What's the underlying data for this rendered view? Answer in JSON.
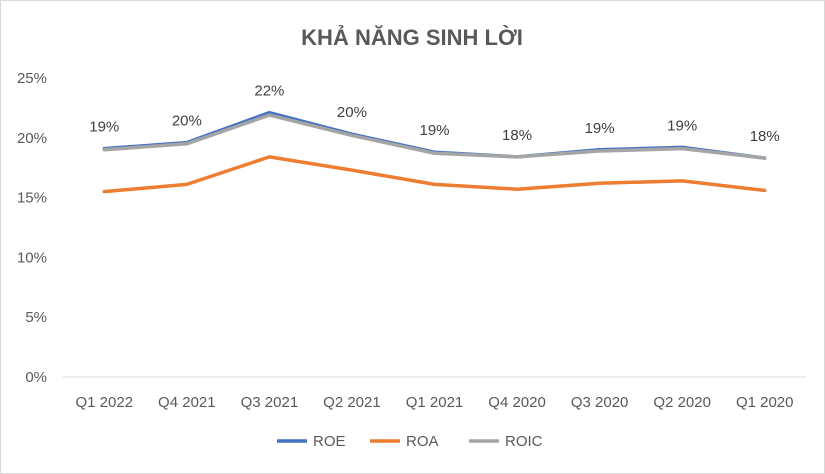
{
  "chart_data": {
    "type": "line",
    "title": "KHẢ NĂNG SINH LỜI",
    "categories": [
      "Q1 2022",
      "Q4 2021",
      "Q3 2021",
      "Q2 2021",
      "Q1 2021",
      "Q4 2020",
      "Q3 2020",
      "Q2 2020",
      "Q1 2020"
    ],
    "series": [
      {
        "name": "ROE",
        "color": "#4472C4",
        "values": [
          0.191,
          0.196,
          0.221,
          0.203,
          0.188,
          0.184,
          0.19,
          0.192,
          0.183
        ]
      },
      {
        "name": "ROA",
        "color": "#ED7D31",
        "values": [
          0.155,
          0.161,
          0.184,
          0.173,
          0.161,
          0.157,
          0.162,
          0.164,
          0.156
        ]
      },
      {
        "name": "ROIC",
        "color": "#A5A5A5",
        "values": [
          0.19,
          0.195,
          0.219,
          0.202,
          0.187,
          0.184,
          0.189,
          0.191,
          0.183
        ]
      }
    ],
    "data_labels": [
      "19%",
      "20%",
      "22%",
      "20%",
      "19%",
      "18%",
      "19%",
      "19%",
      "18%"
    ],
    "y_ticks": [
      "0%",
      "5%",
      "10%",
      "15%",
      "20%",
      "25%"
    ],
    "ylim": [
      0,
      0.25
    ],
    "grid": false,
    "legend_position": "bottom"
  }
}
